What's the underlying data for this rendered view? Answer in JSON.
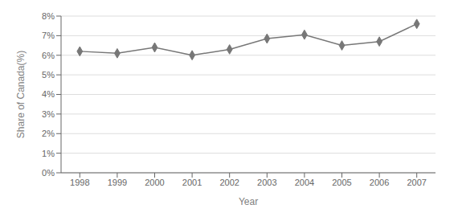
{
  "chart_data": {
    "type": "line",
    "xlabel": "Year",
    "ylabel": "Share of Canada(%)",
    "x": [
      1998,
      1999,
      2000,
      2001,
      2002,
      2003,
      2004,
      2005,
      2006,
      2007
    ],
    "values": [
      6.2,
      6.1,
      6.4,
      6.0,
      6.3,
      6.85,
      7.05,
      6.5,
      6.7,
      7.6
    ],
    "xlim": [
      1997.5,
      2007.5
    ],
    "xticks": [
      1998,
      1999,
      2000,
      2001,
      2002,
      2003,
      2004,
      2005,
      2006,
      2007
    ],
    "ylim": [
      0,
      8
    ],
    "yticks": [
      {
        "value": 0,
        "label": "0%"
      },
      {
        "value": 1,
        "label": "1%"
      },
      {
        "value": 2,
        "label": "2%"
      },
      {
        "value": 3,
        "label": "3%"
      },
      {
        "value": 4,
        "label": "4%"
      },
      {
        "value": 5,
        "label": "5%"
      },
      {
        "value": 6,
        "label": "6%"
      },
      {
        "value": 7,
        "label": "7%"
      },
      {
        "value": 8,
        "label": "8%"
      }
    ],
    "color": "#777777",
    "marker": "diamond",
    "grid": true
  }
}
